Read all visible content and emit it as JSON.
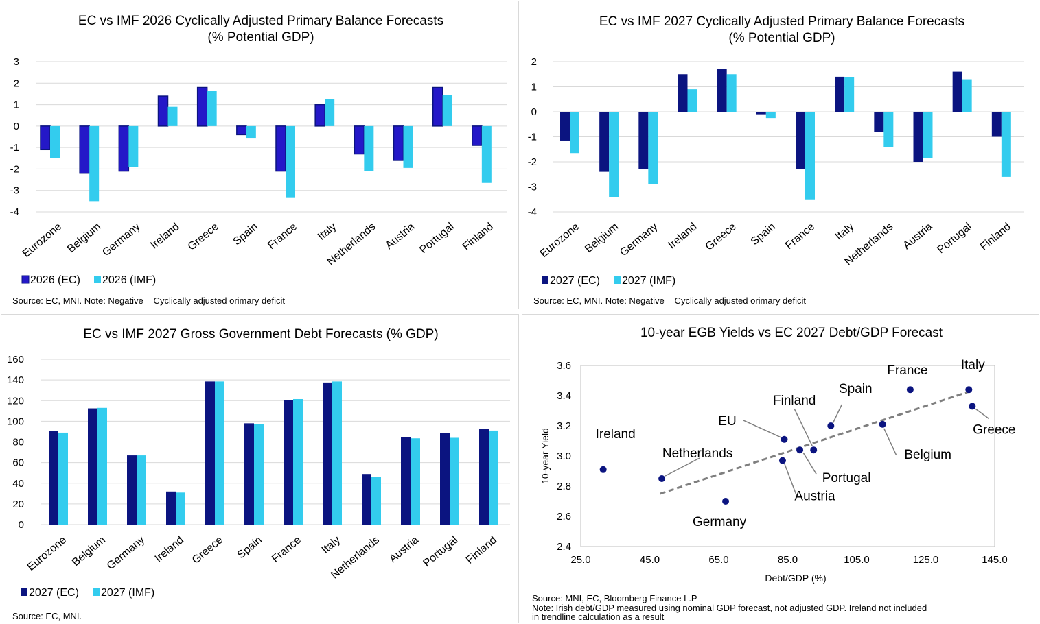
{
  "colors": {
    "ec": "#0b1480",
    "imf": "#33ccee",
    "grid": "#d9d9d9",
    "trend": "#7f7f7f",
    "point": "#0b1480"
  },
  "charts": [
    {
      "type": "bar",
      "title": "EC vs IMF 2026 Cyclically Adjusted Primary Balance Forecasts",
      "subtitle": "(% Potential GDP)",
      "categories": [
        "Eurozone",
        "Belgium",
        "Germany",
        "Ireland",
        "Greece",
        "Spain",
        "France",
        "Italy",
        "Netherlands",
        "Austria",
        "Portugal",
        "Finland"
      ],
      "series": [
        {
          "name": "2026 (EC)",
          "values": [
            -1.1,
            -2.2,
            -2.1,
            1.4,
            1.8,
            -0.4,
            -2.1,
            1.0,
            -1.3,
            -1.6,
            1.8,
            -0.9
          ]
        },
        {
          "name": "2026 (IMF)",
          "values": [
            -1.5,
            -3.5,
            -1.9,
            0.9,
            1.65,
            -0.55,
            -3.35,
            1.25,
            -2.1,
            -1.95,
            1.45,
            -2.65
          ]
        }
      ],
      "ylim": [
        -4,
        3
      ],
      "yticks": [
        "3",
        "2",
        "1",
        "0",
        "-1",
        "-2",
        "-3",
        "-4"
      ],
      "source": "Source: EC, MNI.  Note: Negative = Cyclically adjusted orimary deficit"
    },
    {
      "type": "bar",
      "title": "EC vs IMF 2027 Cyclically Adjusted Primary Balance Forecasts",
      "subtitle": "(% Potential GDP)",
      "categories": [
        "Eurozone",
        "Belgium",
        "Germany",
        "Ireland",
        "Greece",
        "Spain",
        "France",
        "Italy",
        "Netherlands",
        "Austria",
        "Portugal",
        "Finland"
      ],
      "series": [
        {
          "name": "2027 (EC)",
          "values": [
            -1.15,
            -2.4,
            -2.3,
            1.5,
            1.7,
            -0.1,
            -2.3,
            1.4,
            -0.8,
            -2.0,
            1.6,
            -1.0
          ]
        },
        {
          "name": "2027 (IMF)",
          "values": [
            -1.65,
            -3.4,
            -2.9,
            0.9,
            1.5,
            -0.25,
            -3.5,
            1.38,
            -1.4,
            -1.85,
            1.3,
            -2.6
          ]
        }
      ],
      "ylim": [
        -4,
        2
      ],
      "yticks": [
        "2",
        "1",
        "0",
        "-1",
        "-2",
        "-3",
        "-4"
      ],
      "source": "Source: EC, MNI.  Note: Negative = Cyclically adjusted orimary deficit"
    },
    {
      "type": "bar",
      "title": "EC vs IMF 2027 Gross Government Debt Forecasts (% GDP)",
      "categories": [
        "Eurozone",
        "Belgium",
        "Germany",
        "Ireland",
        "Greece",
        "Spain",
        "France",
        "Italy",
        "Netherlands",
        "Austria",
        "Portugal",
        "Finland"
      ],
      "series": [
        {
          "name": "2027 (EC)",
          "values": [
            90.5,
            112.5,
            67,
            32,
            138.5,
            98,
            120.5,
            137.5,
            49,
            84.5,
            88.5,
            92.5
          ]
        },
        {
          "name": "2027 (IMF)",
          "values": [
            89,
            113,
            67,
            31,
            138.5,
            97,
            121.5,
            138.5,
            46,
            83.5,
            84,
            91
          ]
        }
      ],
      "ylim": [
        0,
        160
      ],
      "yticks": [
        "160",
        "140",
        "120",
        "100",
        "80",
        "60",
        "40",
        "20",
        "0"
      ],
      "source": "Source: EC, MNI."
    },
    {
      "type": "scatter",
      "title": "10-year EGB Yields vs EC 2027 Debt/GDP Forecast",
      "xlabel": "Debt/GDP  (%)",
      "ylabel": "10-year Yield",
      "xlim": [
        25,
        145
      ],
      "ylim": [
        2.4,
        3.6
      ],
      "xticks": [
        "25.0",
        "45.0",
        "65.0",
        "85.0",
        "105.0",
        "125.0",
        "145.0"
      ],
      "yticks": [
        "3.6",
        "3.4",
        "3.2",
        "3.0",
        "2.8",
        "2.6",
        "2.4"
      ],
      "points": [
        {
          "label": "Ireland",
          "x": 31.5,
          "y": 2.91
        },
        {
          "label": "Netherlands",
          "x": 48.5,
          "y": 2.85
        },
        {
          "label": "Germany",
          "x": 67,
          "y": 2.7
        },
        {
          "label": "EU",
          "x": 84,
          "y": 3.11
        },
        {
          "label": "Austria",
          "x": 83.5,
          "y": 2.97
        },
        {
          "label": "Portugal",
          "x": 88.5,
          "y": 3.04
        },
        {
          "label": "Finland",
          "x": 92.5,
          "y": 3.04
        },
        {
          "label": "Spain",
          "x": 97.5,
          "y": 3.2
        },
        {
          "label": "Belgium",
          "x": 112.5,
          "y": 3.21
        },
        {
          "label": "France",
          "x": 120.5,
          "y": 3.44
        },
        {
          "label": "Italy",
          "x": 137.5,
          "y": 3.44
        },
        {
          "label": "Greece",
          "x": 138.5,
          "y": 3.33
        }
      ],
      "trendline": {
        "x": [
          48,
          138
        ],
        "y": [
          2.75,
          3.43
        ]
      },
      "source": "Source: MNI, EC, Bloomberg Finance L.P",
      "note": "Note: Irish debt/GDP measured using nominal GDP forecast, not adjusted GDP. Ireland not included in trendline calculation as a result"
    }
  ]
}
